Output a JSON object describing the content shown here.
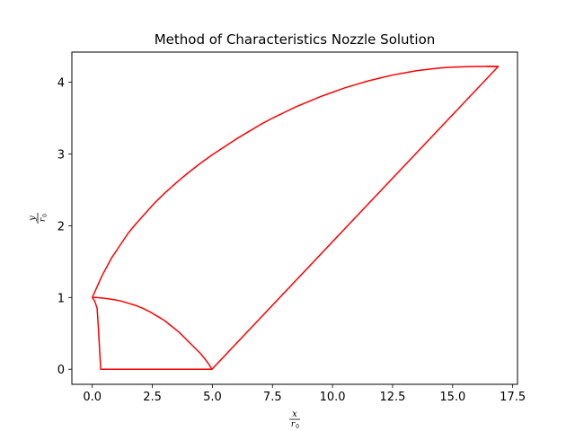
{
  "chart_data": {
    "type": "line",
    "title": "Method of Characteristics Nozzle Solution",
    "xlabel": {
      "num": "x",
      "den": "r",
      "den_sub": "0"
    },
    "ylabel": {
      "num": "y",
      "den": "r",
      "den_sub": "0"
    },
    "xlim": [
      -0.85,
      17.7
    ],
    "ylim": [
      -0.21,
      4.42
    ],
    "xticks": [
      0.0,
      2.5,
      5.0,
      7.5,
      10.0,
      12.5,
      15.0,
      17.5
    ],
    "xtick_labels": [
      "0.0",
      "2.5",
      "5.0",
      "7.5",
      "10.0",
      "12.5",
      "15.0",
      "17.5"
    ],
    "yticks": [
      0,
      1,
      2,
      3,
      4
    ],
    "ytick_labels": [
      "0",
      "1",
      "2",
      "3",
      "4"
    ],
    "line_color": "#ff0000",
    "grid": false,
    "series": [
      {
        "x": [
          0.0,
          0.1,
          0.2,
          0.25,
          0.35,
          0.42,
          0.47,
          0.55,
          0.7,
          0.83,
          0.95,
          1.08,
          1.2,
          1.35,
          1.5,
          1.65,
          1.8,
          1.95,
          2.1,
          2.25,
          2.4,
          2.55,
          2.7,
          2.85,
          3.0,
          3.15,
          3.3,
          3.45,
          3.6,
          3.75,
          3.9,
          4.05,
          4.2,
          4.35,
          4.5,
          4.62,
          4.75,
          4.88,
          4.98,
          4.85,
          4.7,
          4.5,
          4.2,
          3.9,
          3.6,
          3.3,
          3.0,
          2.7,
          2.4,
          2.1,
          1.8,
          1.5,
          1.2,
          0.9,
          0.6,
          0.35,
          0.15,
          0.0
        ],
        "y": [
          1.0,
          0.95,
          0.85,
          0.6,
          0.0,
          0.0,
          0.0,
          0.0,
          0.0,
          0.0,
          0.0,
          0.0,
          0.0,
          0.0,
          0.0,
          0.0,
          0.0,
          0.0,
          0.0,
          0.0,
          0.0,
          0.0,
          0.0,
          0.0,
          0.0,
          0.0,
          0.0,
          0.0,
          0.0,
          0.0,
          0.0,
          0.0,
          0.0,
          0.0,
          0.0,
          0.0,
          0.0,
          0.0,
          0.0,
          0.07,
          0.14,
          0.22,
          0.32,
          0.42,
          0.52,
          0.6,
          0.68,
          0.74,
          0.8,
          0.85,
          0.89,
          0.92,
          0.95,
          0.97,
          0.985,
          0.995,
          1.0,
          1.0
        ]
      },
      {
        "x": [
          0.0,
          0.4,
          0.8,
          1.2,
          1.5,
          1.8,
          2.2,
          2.6,
          3.0,
          3.5,
          4.0,
          4.5,
          5.0,
          5.5,
          6.0,
          6.5,
          7.0,
          7.5,
          8.0,
          8.5,
          9.0,
          9.5,
          10.0,
          10.5,
          11.0,
          11.5,
          12.0,
          12.5,
          13.0,
          13.5,
          14.0,
          14.5,
          15.0,
          15.5,
          16.0,
          16.4,
          16.9
        ],
        "y": [
          1.0,
          1.3,
          1.55,
          1.75,
          1.9,
          2.02,
          2.17,
          2.32,
          2.45,
          2.6,
          2.74,
          2.87,
          2.99,
          3.1,
          3.21,
          3.31,
          3.41,
          3.5,
          3.58,
          3.66,
          3.73,
          3.8,
          3.86,
          3.92,
          3.97,
          4.02,
          4.06,
          4.1,
          4.13,
          4.16,
          4.18,
          4.2,
          4.21,
          4.215,
          4.22,
          4.22,
          4.22
        ]
      },
      {
        "x": [
          4.98,
          16.9,
          16.4
        ],
        "y": [
          0.0,
          4.22,
          4.22
        ]
      }
    ]
  }
}
